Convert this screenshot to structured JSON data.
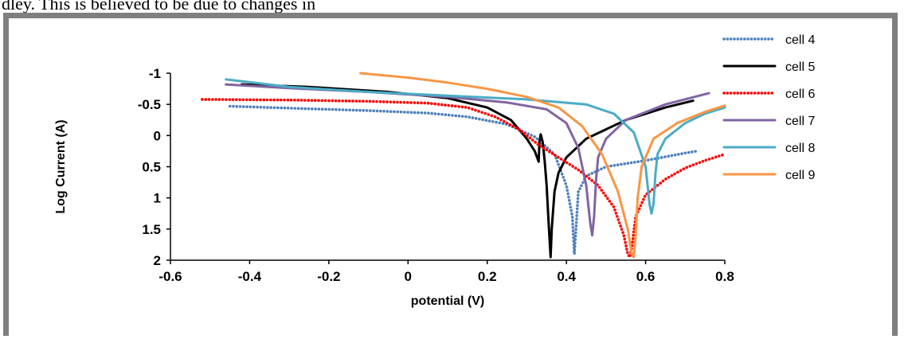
{
  "page": {
    "top_text": "dley. This is believed to be due to changes in"
  },
  "chart_data": {
    "type": "line",
    "title": "",
    "xlabel": "potential (V)",
    "ylabel": "Log Current (A)",
    "xlim": [
      -0.6,
      0.8
    ],
    "ylim": [
      -1,
      2
    ],
    "y_inverted": true,
    "x_ticks": [
      -0.6,
      -0.4,
      -0.2,
      0,
      0.2,
      0.4,
      0.6,
      0.8
    ],
    "x_tick_labels": [
      "-0.6",
      "-0.4",
      "-0.2",
      "0",
      "0.2",
      "0.4",
      "0.6",
      "0.8"
    ],
    "y_ticks": [
      -1,
      -0.5,
      0,
      0.5,
      1,
      1.5,
      2
    ],
    "y_tick_labels": [
      "-1",
      "-0.5",
      "0",
      "0.5",
      "1",
      "1.5",
      "2"
    ],
    "grid": false,
    "legend_position": "top-right",
    "series": [
      {
        "name": "cell 4",
        "color": "#4f81bd",
        "style": "dotted",
        "x": [
          -0.45,
          -0.3,
          -0.1,
          0.05,
          0.15,
          0.25,
          0.32,
          0.37,
          0.4,
          0.415,
          0.42,
          0.425,
          0.43,
          0.45,
          0.5,
          0.6,
          0.7,
          0.73
        ],
        "y": [
          -0.47,
          -0.44,
          -0.4,
          -0.36,
          -0.3,
          -0.18,
          0.02,
          0.3,
          0.8,
          1.3,
          1.9,
          1.4,
          0.9,
          0.65,
          0.5,
          0.4,
          0.28,
          0.25
        ]
      },
      {
        "name": "cell 5",
        "color": "#000000",
        "style": "solid",
        "x": [
          -0.42,
          -0.25,
          -0.05,
          0.1,
          0.2,
          0.26,
          0.3,
          0.32,
          0.33,
          0.332,
          0.335,
          0.34,
          0.345,
          0.35,
          0.355,
          0.36,
          0.363,
          0.37,
          0.38,
          0.4,
          0.45,
          0.55,
          0.65,
          0.72
        ],
        "y": [
          -0.82,
          -0.78,
          -0.7,
          -0.6,
          -0.45,
          -0.25,
          0.05,
          0.25,
          0.42,
          0.1,
          -0.02,
          0.1,
          0.4,
          0.8,
          1.4,
          1.95,
          1.5,
          0.9,
          0.6,
          0.35,
          0.05,
          -0.25,
          -0.45,
          -0.56
        ]
      },
      {
        "name": "cell 6",
        "color": "#ff0000",
        "style": "dotted",
        "x": [
          -0.52,
          -0.3,
          -0.1,
          0.05,
          0.15,
          0.22,
          0.28,
          0.33,
          0.38,
          0.43,
          0.48,
          0.52,
          0.545,
          0.555,
          0.56,
          0.565,
          0.575,
          0.6,
          0.65,
          0.7,
          0.75,
          0.8
        ],
        "y": [
          -0.58,
          -0.57,
          -0.55,
          -0.52,
          -0.45,
          -0.3,
          -0.1,
          0.15,
          0.35,
          0.55,
          0.8,
          1.15,
          1.6,
          1.9,
          1.95,
          1.8,
          1.3,
          0.95,
          0.7,
          0.52,
          0.4,
          0.3
        ]
      },
      {
        "name": "cell 7",
        "color": "#8064a2",
        "style": "solid",
        "x": [
          -0.46,
          -0.3,
          -0.1,
          0.1,
          0.25,
          0.35,
          0.4,
          0.43,
          0.45,
          0.46,
          0.465,
          0.47,
          0.475,
          0.48,
          0.5,
          0.55,
          0.65,
          0.76
        ],
        "y": [
          -0.82,
          -0.76,
          -0.7,
          -0.62,
          -0.53,
          -0.42,
          -0.2,
          0.2,
          0.8,
          1.4,
          1.6,
          1.3,
          0.7,
          0.35,
          0.05,
          -0.25,
          -0.5,
          -0.68
        ]
      },
      {
        "name": "cell 8",
        "color": "#4bacc6",
        "style": "solid",
        "x": [
          -0.46,
          -0.3,
          -0.1,
          0.1,
          0.3,
          0.45,
          0.52,
          0.57,
          0.6,
          0.61,
          0.615,
          0.62,
          0.625,
          0.63,
          0.65,
          0.7,
          0.75,
          0.8
        ],
        "y": [
          -0.9,
          -0.78,
          -0.7,
          -0.64,
          -0.58,
          -0.5,
          -0.35,
          -0.05,
          0.5,
          1.1,
          1.25,
          1.1,
          0.6,
          0.3,
          0.05,
          -0.2,
          -0.35,
          -0.45
        ]
      },
      {
        "name": "cell 9",
        "color": "#f79646",
        "style": "solid",
        "x": [
          -0.12,
          0.0,
          0.1,
          0.2,
          0.3,
          0.38,
          0.44,
          0.49,
          0.53,
          0.555,
          0.565,
          0.57,
          0.575,
          0.58,
          0.59,
          0.62,
          0.68,
          0.75,
          0.8
        ],
        "y": [
          -1.0,
          -0.93,
          -0.85,
          -0.75,
          -0.62,
          -0.45,
          -0.15,
          0.3,
          0.9,
          1.5,
          1.9,
          1.95,
          1.6,
          1.0,
          0.5,
          0.05,
          -0.2,
          -0.38,
          -0.48
        ]
      }
    ]
  }
}
